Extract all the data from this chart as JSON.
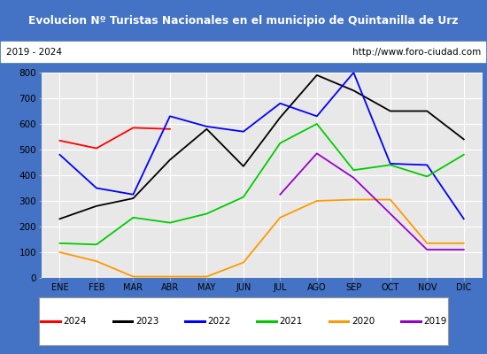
{
  "title": "Evolucion Nº Turistas Nacionales en el municipio de Quintanilla de Urz",
  "subtitle_left": "2019 - 2024",
  "subtitle_right": "http://www.foro-ciudad.com",
  "months": [
    "ENE",
    "FEB",
    "MAR",
    "ABR",
    "MAY",
    "JUN",
    "JUL",
    "AGO",
    "SEP",
    "OCT",
    "NOV",
    "DIC"
  ],
  "series": {
    "2024": [
      535,
      505,
      585,
      580,
      null,
      null,
      null,
      null,
      null,
      null,
      null,
      null
    ],
    "2023": [
      230,
      280,
      310,
      460,
      580,
      435,
      625,
      790,
      730,
      650,
      650,
      540
    ],
    "2022": [
      480,
      350,
      325,
      630,
      590,
      570,
      680,
      630,
      800,
      445,
      440,
      230
    ],
    "2021": [
      135,
      130,
      235,
      215,
      250,
      315,
      525,
      600,
      420,
      440,
      395,
      480
    ],
    "2020": [
      100,
      65,
      5,
      5,
      5,
      60,
      235,
      300,
      305,
      305,
      135,
      135
    ],
    "2019": [
      null,
      null,
      null,
      null,
      null,
      null,
      325,
      485,
      390,
      null,
      110,
      110
    ]
  },
  "colors": {
    "2024": "#ff0000",
    "2023": "#000000",
    "2022": "#0000ff",
    "2021": "#00cc00",
    "2020": "#ff9900",
    "2019": "#9900cc"
  },
  "ylim": [
    0,
    800
  ],
  "yticks": [
    0,
    100,
    200,
    300,
    400,
    500,
    600,
    700,
    800
  ],
  "title_bg_color": "#4472c4",
  "title_text_color": "#ffffff",
  "plot_bg_color": "#e8e8e8",
  "grid_color": "#ffffff",
  "border_color": "#4472c4",
  "legend_years": [
    "2024",
    "2023",
    "2022",
    "2021",
    "2020",
    "2019"
  ]
}
